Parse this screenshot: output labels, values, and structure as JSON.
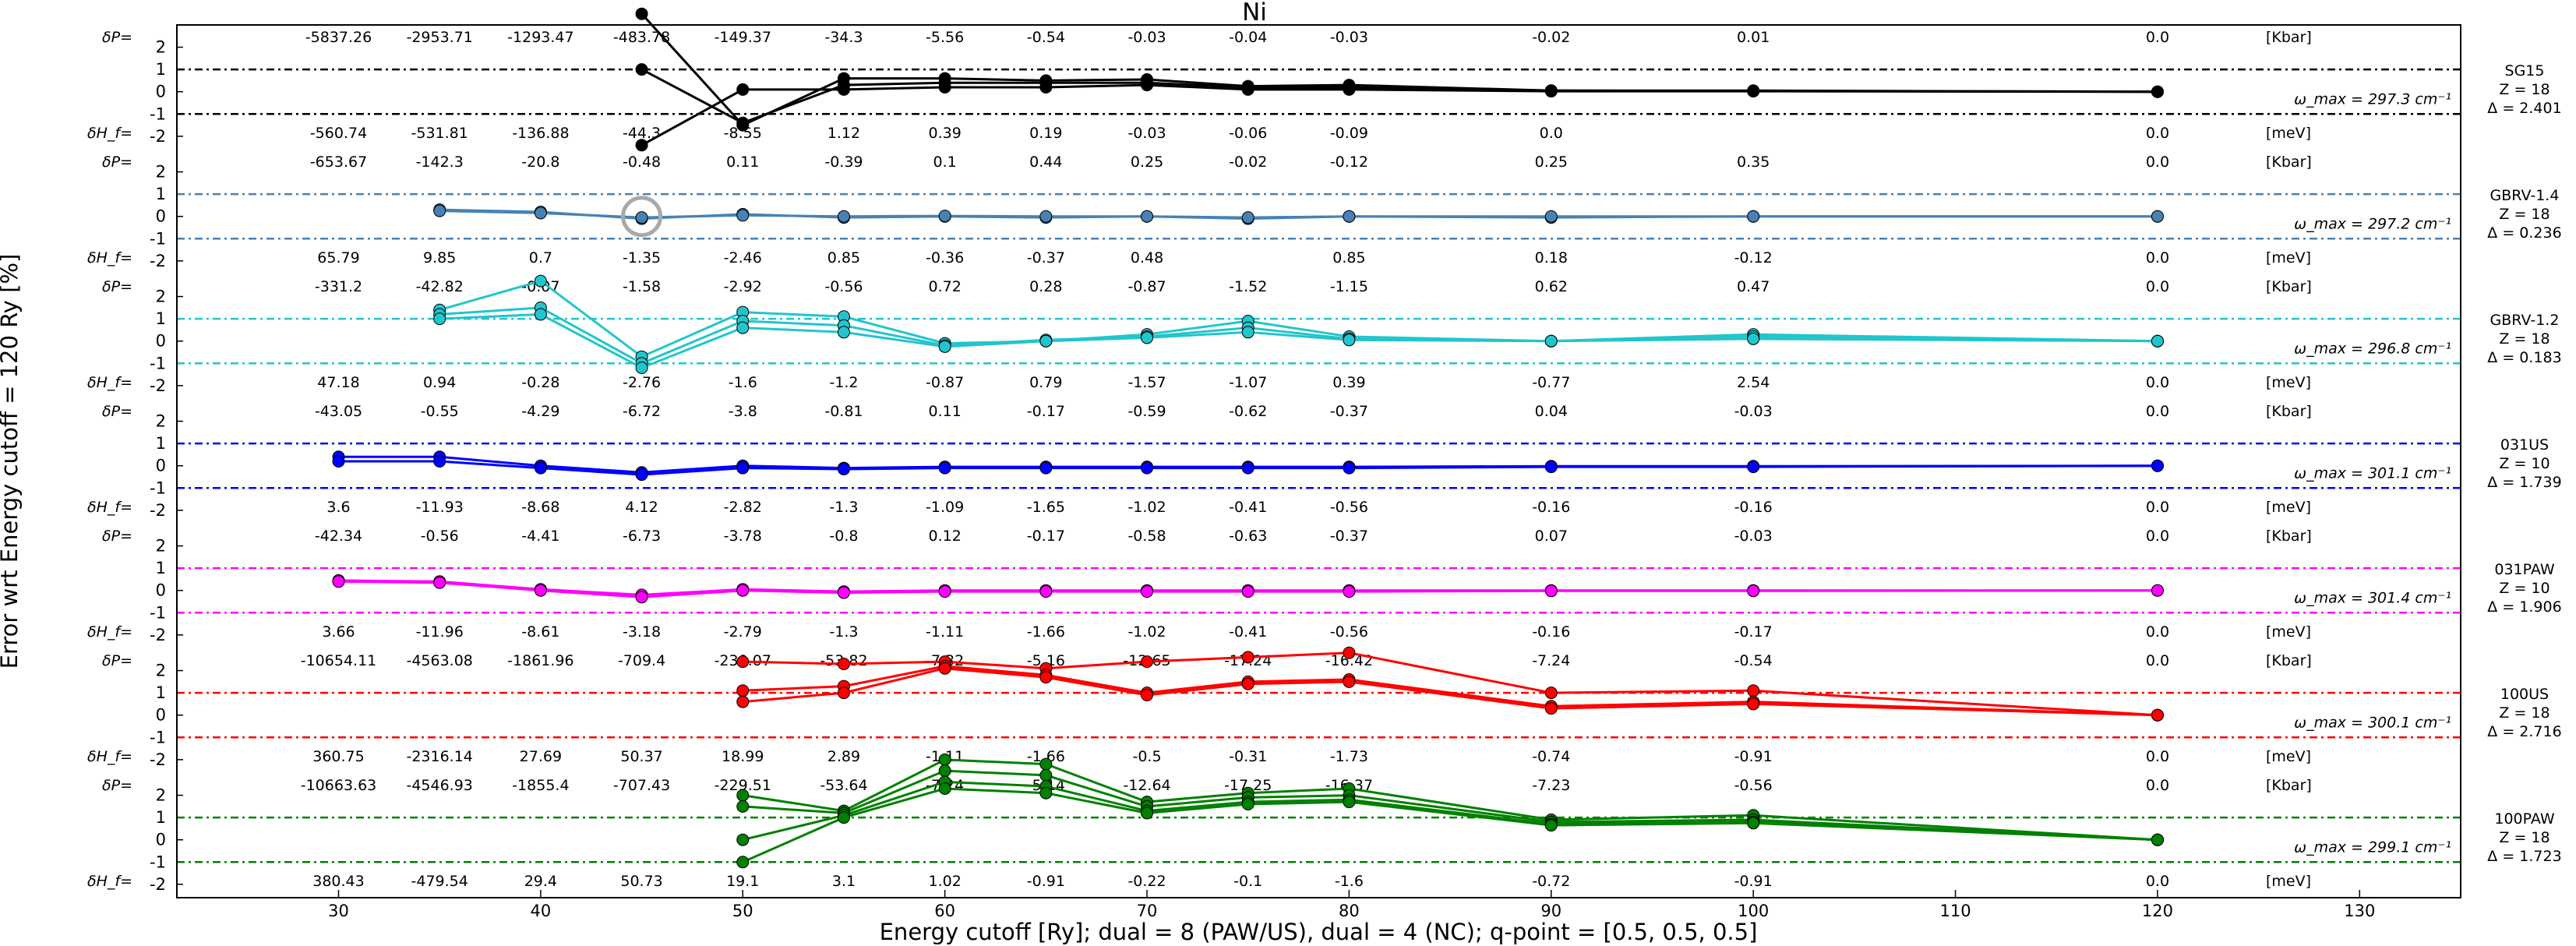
{
  "chart_data": {
    "type": "line",
    "title": "Ni",
    "xlabel": "Energy cutoff [Ry]; dual = 8 (PAW/US), dual = 4 (NC); q-point = [0.5, 0.5, 0.5]",
    "ylabel": "Error wrt Energy cutoff = 120 Ry [%]",
    "xlim": [
      22,
      135
    ],
    "xticks": [
      30,
      40,
      50,
      60,
      70,
      80,
      90,
      100,
      110,
      120,
      130
    ],
    "x": [
      30,
      35,
      40,
      45,
      50,
      55,
      60,
      65,
      70,
      75,
      80,
      90,
      100,
      120
    ],
    "panel_ylim": [
      -2.6,
      3
    ],
    "panel_yticks": [
      "2",
      "1",
      "0",
      "-1",
      "-2"
    ],
    "dp_label": "δP=",
    "dh_label": "δH_f=",
    "dp_unit": "[Kbar]",
    "dh_unit": "[meV]",
    "omega_label": "ω_max =",
    "omega_unit": "cm⁻¹",
    "highlight": {
      "panel": 1,
      "x": 45
    },
    "panels": [
      {
        "name": "SG15",
        "color": "#000000",
        "z_text": "Z = 18",
        "delta_text": "Δ = 2.401",
        "omega_value": "297.3",
        "dP": [
          "-5837.26",
          "-2953.71",
          "-1293.47",
          "-483.78",
          "-149.37",
          "-34.3",
          "-5.56",
          "-0.54",
          "-0.03",
          "-0.04",
          "-0.03",
          "-0.02",
          "0.01",
          "0.0"
        ],
        "dH": [
          "-560.74",
          "-531.81",
          "-136.88",
          "-44.3",
          "-8.55",
          "1.12",
          "0.39",
          "0.19",
          "-0.03",
          "-0.06",
          "-0.09",
          "0.0",
          "",
          "0.0"
        ],
        "series": [
          [
            null,
            null,
            null,
            3.5,
            -1.5,
            0.6,
            0.6,
            0.5,
            0.55,
            0.25,
            0.3,
            0.05,
            0.05,
            0.0
          ],
          [
            null,
            null,
            null,
            1.0,
            -1.4,
            0.3,
            0.4,
            0.4,
            0.4,
            0.2,
            0.2,
            0.05,
            0.03,
            0.0
          ],
          [
            null,
            null,
            null,
            -2.4,
            0.1,
            0.1,
            0.2,
            0.2,
            0.3,
            0.1,
            0.1,
            0.02,
            0.02,
            0.0
          ]
        ]
      },
      {
        "name": "GBRV-1.4",
        "color": "#4682b4",
        "z_text": "Z = 18",
        "delta_text": "Δ = 0.236",
        "omega_value": "297.2",
        "dP": [
          "-653.67",
          "-142.3",
          "-20.8",
          "-0.48",
          "0.11",
          "-0.39",
          "0.1",
          "0.44",
          "0.25",
          "-0.02",
          "-0.12",
          "0.25",
          "0.35",
          "0.0"
        ],
        "dH": [
          "65.79",
          "9.85",
          "0.7",
          "-1.35",
          "-2.46",
          "0.85",
          "-0.36",
          "-0.37",
          "0.48",
          "",
          "0.85",
          "0.18",
          "-0.12",
          "0.0"
        ],
        "series": [
          [
            null,
            0.3,
            0.2,
            -0.1,
            0.1,
            -0.05,
            0.0,
            -0.05,
            0.0,
            -0.1,
            0.0,
            -0.05,
            0.0,
            0.0
          ],
          [
            null,
            0.25,
            0.15,
            -0.05,
            0.05,
            0.0,
            0.02,
            0.0,
            0.0,
            -0.05,
            0.0,
            0.0,
            0.0,
            0.0
          ]
        ]
      },
      {
        "name": "GBRV-1.2",
        "color": "#22c5cc",
        "z_text": "Z = 18",
        "delta_text": "Δ = 0.183",
        "omega_value": "296.8",
        "dP": [
          "-331.2",
          "-42.82",
          "-0.07",
          "-1.58",
          "-2.92",
          "-0.56",
          "0.72",
          "0.28",
          "-0.87",
          "-1.52",
          "-1.15",
          "0.62",
          "0.47",
          "0.0"
        ],
        "dH": [
          "47.18",
          "0.94",
          "-0.28",
          "-2.76",
          "-1.6",
          "-1.2",
          "-0.87",
          "0.79",
          "-1.57",
          "-1.07",
          "0.39",
          "-0.77",
          "2.54",
          "0.0"
        ],
        "series": [
          [
            null,
            1.4,
            2.7,
            -0.7,
            1.3,
            1.1,
            -0.1,
            0.0,
            0.3,
            0.9,
            0.2,
            0.0,
            0.3,
            0.0
          ],
          [
            null,
            1.2,
            1.5,
            -1.0,
            0.9,
            0.7,
            -0.2,
            0.05,
            0.2,
            0.6,
            0.1,
            0.0,
            0.2,
            0.0
          ],
          [
            null,
            1.0,
            1.2,
            -1.2,
            0.6,
            0.4,
            -0.25,
            0.0,
            0.15,
            0.4,
            0.05,
            0.0,
            0.1,
            0.0
          ]
        ]
      },
      {
        "name": "031US",
        "color": "#0000ff",
        "z_text": "Z = 10",
        "delta_text": "Δ = 1.739",
        "omega_value": "301.1",
        "dP": [
          "-43.05",
          "-0.55",
          "-4.29",
          "-6.72",
          "-3.8",
          "-0.81",
          "0.11",
          "-0.17",
          "-0.59",
          "-0.62",
          "-0.37",
          "0.04",
          "-0.03",
          "0.0"
        ],
        "dH": [
          "3.6",
          "-11.93",
          "-8.68",
          "4.12",
          "-2.82",
          "-1.3",
          "-1.09",
          "-1.65",
          "-1.02",
          "-0.41",
          "-0.56",
          "-0.16",
          "-0.16",
          "0.0"
        ],
        "series": [
          [
            0.4,
            0.4,
            0.0,
            -0.3,
            0.0,
            -0.1,
            -0.05,
            -0.05,
            -0.05,
            -0.05,
            -0.05,
            -0.02,
            -0.02,
            0.0
          ],
          [
            0.2,
            0.2,
            -0.1,
            -0.4,
            -0.1,
            -0.15,
            -0.1,
            -0.1,
            -0.1,
            -0.1,
            -0.1,
            -0.05,
            -0.05,
            0.0
          ]
        ]
      },
      {
        "name": "031PAW",
        "color": "#ff00ff",
        "z_text": "Z = 10",
        "delta_text": "Δ = 1.906",
        "omega_value": "301.4",
        "dP": [
          "-42.34",
          "-0.56",
          "-4.41",
          "-6.73",
          "-3.78",
          "-0.8",
          "0.12",
          "-0.17",
          "-0.58",
          "-0.63",
          "-0.37",
          "0.07",
          "-0.03",
          "0.0"
        ],
        "dH": [
          "3.66",
          "-11.96",
          "-8.61",
          "-3.18",
          "-2.79",
          "-1.3",
          "-1.11",
          "-1.66",
          "-1.02",
          "-0.41",
          "-0.56",
          "-0.16",
          "-0.17",
          "0.0"
        ],
        "series": [
          [
            0.45,
            0.4,
            0.05,
            -0.2,
            0.05,
            -0.05,
            0.0,
            0.0,
            0.0,
            0.0,
            0.0,
            0.0,
            0.0,
            0.0
          ],
          [
            0.4,
            0.35,
            0.0,
            -0.3,
            0.0,
            -0.1,
            -0.05,
            -0.05,
            -0.05,
            -0.05,
            -0.05,
            -0.02,
            -0.02,
            0.0
          ]
        ]
      },
      {
        "name": "100US",
        "color": "#ff0000",
        "z_text": "Z = 18",
        "delta_text": "Δ = 2.716",
        "omega_value": "300.1",
        "dP": [
          "-10654.11",
          "-4563.08",
          "-1861.96",
          "-709.4",
          "-230.07",
          "-53.82",
          "-7.32",
          "-5.16",
          "-12.65",
          "-17.24",
          "-16.42",
          "-7.24",
          "-0.54",
          "0.0"
        ],
        "dH": [
          "360.75",
          "-2316.14",
          "27.69",
          "50.37",
          "18.99",
          "2.89",
          "-1.11",
          "-1.66",
          "-0.5",
          "-0.31",
          "-1.73",
          "-0.74",
          "-0.91",
          "0.0"
        ],
        "series": [
          [
            null,
            null,
            null,
            null,
            2.4,
            2.3,
            2.4,
            2.1,
            2.4,
            2.6,
            2.8,
            1.0,
            1.1,
            0.0
          ],
          [
            null,
            null,
            null,
            null,
            1.1,
            1.3,
            2.2,
            1.8,
            1.0,
            1.5,
            1.6,
            0.4,
            0.6,
            0.0
          ],
          [
            null,
            null,
            null,
            null,
            0.6,
            1.0,
            2.1,
            1.7,
            0.9,
            1.4,
            1.5,
            0.3,
            0.5,
            0.0
          ]
        ]
      },
      {
        "name": "100PAW",
        "color": "#008000",
        "z_text": "Z = 18",
        "delta_text": "Δ = 1.723",
        "omega_value": "299.1",
        "dP": [
          "-10663.63",
          "-4546.93",
          "-1855.4",
          "-707.43",
          "-229.51",
          "-53.64",
          "-7.24",
          "-5.14",
          "-12.64",
          "-17.25",
          "-16.37",
          "-7.23",
          "-0.56",
          "0.0"
        ],
        "dH": [
          "380.43",
          "-479.54",
          "29.4",
          "50.73",
          "19.1",
          "3.1",
          "1.02",
          "-0.91",
          "-0.22",
          "-0.1",
          "-1.6",
          "-0.72",
          "-0.91",
          "0.0"
        ],
        "series": [
          [
            null,
            null,
            null,
            null,
            2.0,
            1.3,
            3.6,
            3.4,
            1.7,
            2.1,
            2.3,
            0.9,
            1.1,
            0.0
          ],
          [
            null,
            null,
            null,
            null,
            1.5,
            1.2,
            3.1,
            2.9,
            1.5,
            1.9,
            2.0,
            0.8,
            0.9,
            0.0
          ],
          [
            null,
            null,
            null,
            null,
            0.0,
            1.1,
            2.6,
            2.4,
            1.3,
            1.7,
            1.8,
            0.7,
            0.8,
            0.0
          ],
          [
            null,
            null,
            null,
            null,
            -1.0,
            1.0,
            2.3,
            2.1,
            1.2,
            1.6,
            1.7,
            0.65,
            0.75,
            0.0
          ]
        ]
      }
    ]
  }
}
